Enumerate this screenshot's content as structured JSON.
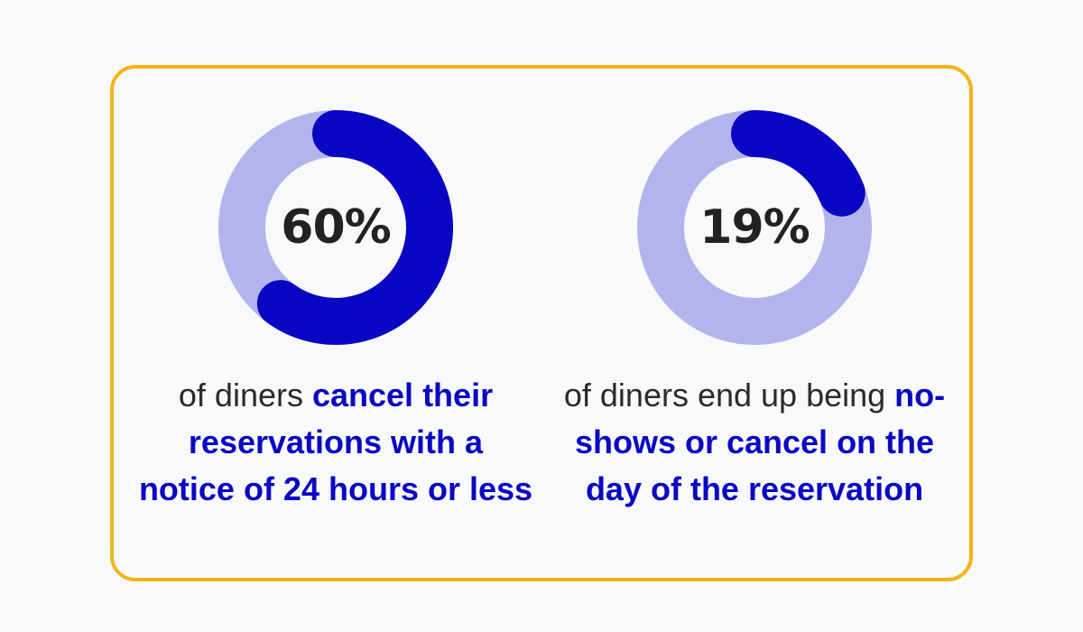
{
  "colors": {
    "background": "#f8f9fb",
    "border": "#f5b21b",
    "track": "#b4b4ed",
    "arc": "#0a07c4",
    "value_text": "#222222",
    "caption_text": "#2b2b2b",
    "emphasis_text": "#0a07c4"
  },
  "chart_data": [
    {
      "type": "pie",
      "value": 60,
      "label": "60%",
      "caption_plain": "of diners ",
      "caption_emphasis": "cancel their reservations with a notice of 24 hours or less"
    },
    {
      "type": "pie",
      "value": 19,
      "label": "19%",
      "caption_plain": "of diners end up being ",
      "caption_emphasis": "no-shows or cancel on the day of the reservation"
    }
  ]
}
